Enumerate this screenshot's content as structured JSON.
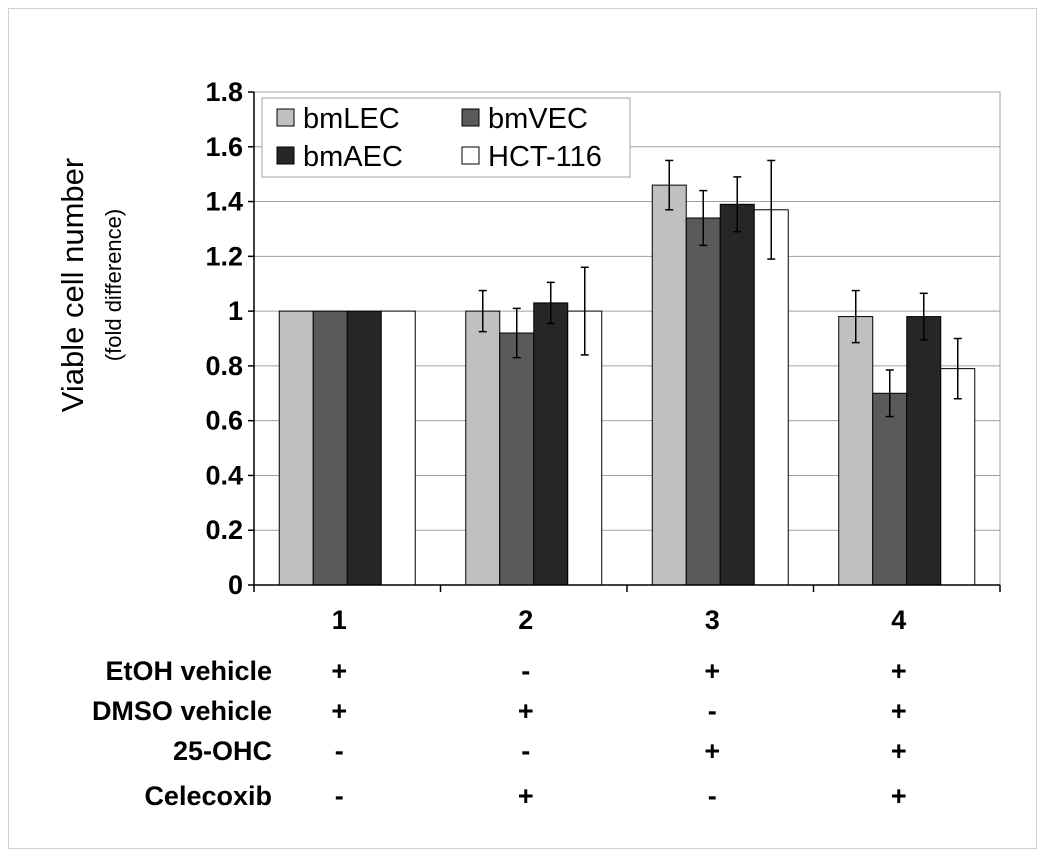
{
  "chart_data": {
    "type": "bar",
    "categories": [
      "1",
      "2",
      "3",
      "4"
    ],
    "ylabel": "Viable cell number",
    "ylabel_sub": "(fold difference)",
    "ylim": [
      0,
      1.8
    ],
    "yticks": [
      "0",
      "0.2",
      "0.4",
      "0.6",
      "0.8",
      "1",
      "1.2",
      "1.4",
      "1.6",
      "1.8"
    ],
    "grid": true,
    "legend_position": "top-left",
    "series": [
      {
        "name": "bmLEC",
        "color": "#c0c0c0",
        "values": [
          1.0,
          1.0,
          1.46,
          0.98
        ],
        "errors": [
          0,
          0.075,
          0.09,
          0.095
        ]
      },
      {
        "name": "bmVEC",
        "color": "#5a5a5a",
        "values": [
          1.0,
          0.92,
          1.34,
          0.7
        ],
        "errors": [
          0,
          0.09,
          0.1,
          0.085
        ]
      },
      {
        "name": "bmAEC",
        "color": "#262626",
        "values": [
          1.0,
          1.03,
          1.39,
          0.98
        ],
        "errors": [
          0,
          0.075,
          0.1,
          0.085
        ]
      },
      {
        "name": "HCT-116",
        "color": "#ffffff",
        "values": [
          1.0,
          1.0,
          1.37,
          0.79
        ],
        "errors": [
          0,
          0.16,
          0.18,
          0.11
        ]
      }
    ],
    "treatments": [
      {
        "label": "EtOH vehicle",
        "marks": [
          "+",
          "-",
          "+",
          "+"
        ]
      },
      {
        "label": "DMSO vehicle",
        "marks": [
          "+",
          "+",
          "-",
          "+"
        ]
      },
      {
        "label": "25-OHC",
        "marks": [
          "-",
          "-",
          "+",
          "+"
        ]
      },
      {
        "label": "Celecoxib",
        "marks": [
          "-",
          "+",
          "-",
          "+"
        ]
      }
    ]
  }
}
